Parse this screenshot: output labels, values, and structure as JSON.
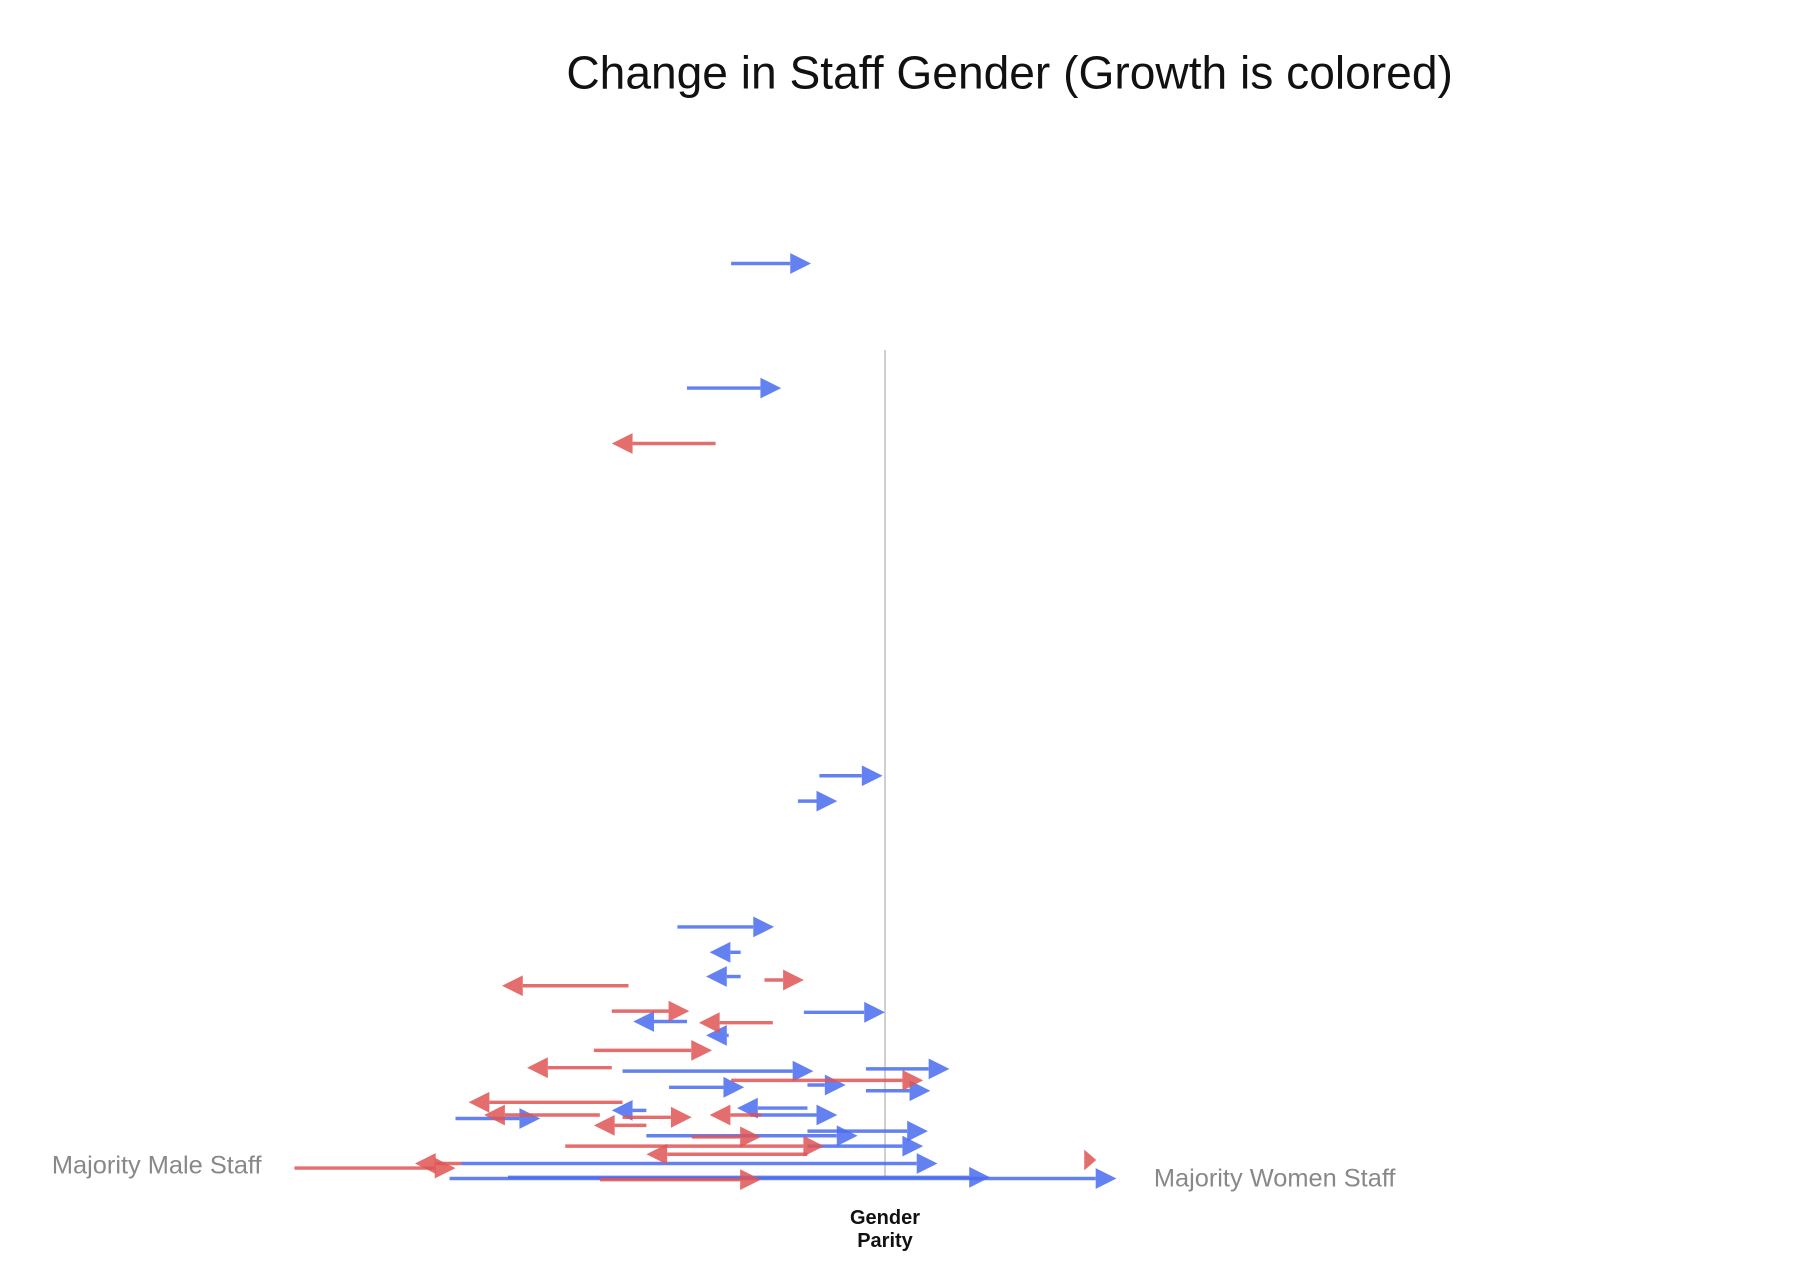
{
  "chart_data": {
    "type": "arrow",
    "title": "Change in Staff Gender (Growth is colored)",
    "left_label": "Majority Male Staff",
    "right_label": "Majority Women Staff",
    "parity_label": "Gender Parity",
    "parity": 50,
    "xlim": [
      0,
      100
    ],
    "ylim": [
      0,
      800
    ],
    "series": [
      {
        "color": "#4a6cf0",
        "start": [
          37.1,
          33.4,
          44.5,
          42.7,
          32.6,
          37.9,
          37.9,
          43.2,
          33.4,
          36.9,
          48.4,
          28.0,
          31.9,
          43.5,
          48.4,
          14.0,
          43.5,
          38.7,
          30.0,
          43.5,
          30.0,
          14.5,
          13.5,
          18.4,
          43.5
        ],
        "end": [
          43.8,
          41.3,
          49.8,
          46.0,
          40.7,
          35.3,
          35.0,
          50.0,
          28.9,
          35.0,
          55.4,
          44.0,
          38.2,
          46.7,
          53.8,
          21.1,
          37.6,
          46.0,
          27.1,
          53.6,
          47.7,
          54.4,
          69.4,
          58.8,
          53.2
        ],
        "y": [
          797,
          689,
          353,
          331,
          222,
          200,
          179,
          148,
          140,
          128,
          99,
          97,
          83,
          85,
          80,
          56,
          65,
          59,
          63,
          45,
          41,
          17,
          4,
          5,
          32
        ]
      },
      {
        "color": "#e05555",
        "start": [
          35.8,
          28.5,
          39.9,
          27.1,
          40.6,
          25.6,
          27.1,
          37.1,
          28.0,
          26.1,
          28.0,
          39.6,
          30.0,
          33.8,
          23.2,
          0.5,
          14.5,
          66.7,
          26.1,
          43.5
        ],
        "end": [
          27.1,
          17.9,
          43.2,
          33.6,
          34.4,
          35.5,
          20.0,
          53.2,
          15.1,
          16.4,
          33.8,
          35.3,
          25.6,
          39.6,
          44.9,
          14.0,
          10.6,
          67.7,
          39.6,
          30.0
        ],
        "y": [
          641,
          171,
          176,
          149,
          139,
          115,
          100,
          89,
          70,
          59,
          57,
          59,
          50,
          40,
          32,
          13,
          17,
          20,
          3,
          25
        ]
      }
    ]
  }
}
